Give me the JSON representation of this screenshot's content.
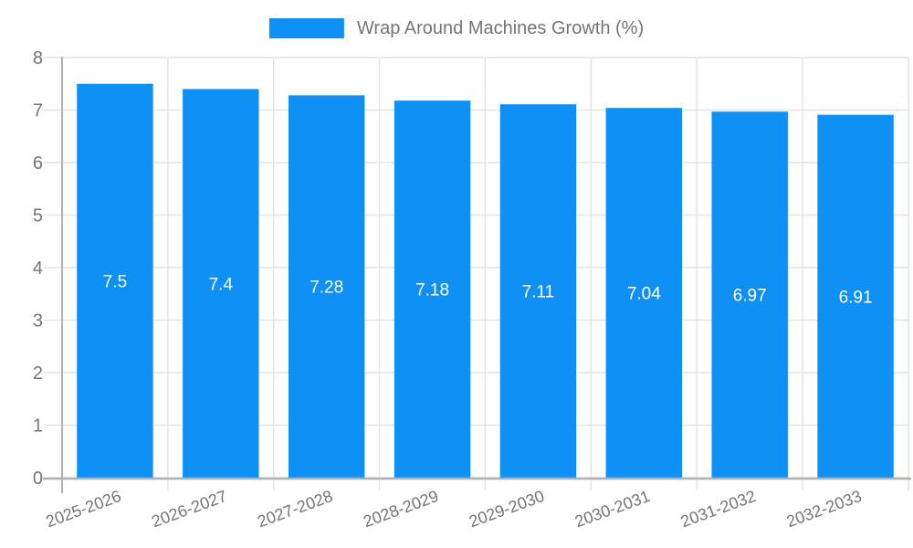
{
  "legend": {
    "label": "Wrap Around Machines Growth (%)"
  },
  "chart_data": {
    "type": "bar",
    "title": "Wrap Around Machines Growth (%)",
    "categories": [
      "2025-2026",
      "2026-2027",
      "2027-2028",
      "2028-2029",
      "2029-2030",
      "2030-2031",
      "2031-2032",
      "2032-2033"
    ],
    "values": [
      7.5,
      7.4,
      7.28,
      7.18,
      7.11,
      7.04,
      6.97,
      6.91
    ],
    "value_labels": [
      "7.5",
      "7.4",
      "7.28",
      "7.18",
      "7.11",
      "7.04",
      "6.97",
      "6.91"
    ],
    "xlabel": "",
    "ylabel": "",
    "ylim": [
      0,
      8
    ],
    "ytick_interval": 1,
    "ytick_labels": [
      "0",
      "1",
      "2",
      "3",
      "4",
      "5",
      "6",
      "7",
      "8"
    ],
    "grid": true,
    "legend_position": "top-center",
    "bar_color": "#0e90f4",
    "value_label_color": "#ffffff",
    "axis_text_color": "#757575",
    "grid_color": "#e4e4e4",
    "axis_line_color": "#b0b0b0"
  }
}
